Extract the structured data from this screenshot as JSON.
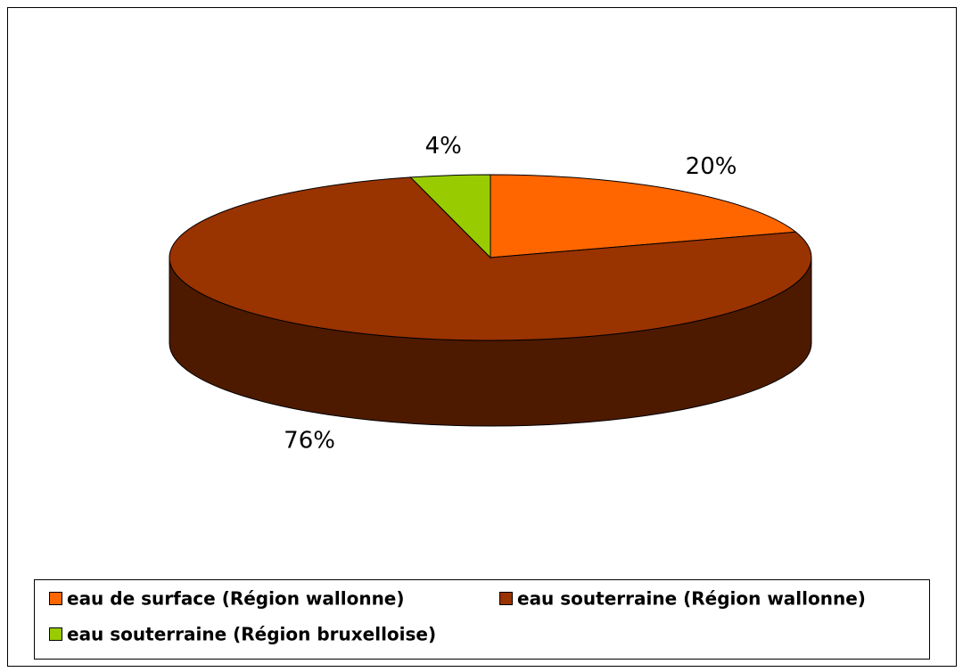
{
  "chart_data": {
    "type": "pie",
    "categories": [
      "eau de surface (Région wallonne)",
      "eau souterraine (Région wallonne)",
      "eau souterraine (Région bruxelloise)"
    ],
    "values": [
      20,
      76,
      4
    ],
    "value_labels": [
      "20%",
      "76%",
      "4%"
    ],
    "colors": [
      "#ff6600",
      "#993300",
      "#99cc00"
    ],
    "legend": "bottom"
  }
}
